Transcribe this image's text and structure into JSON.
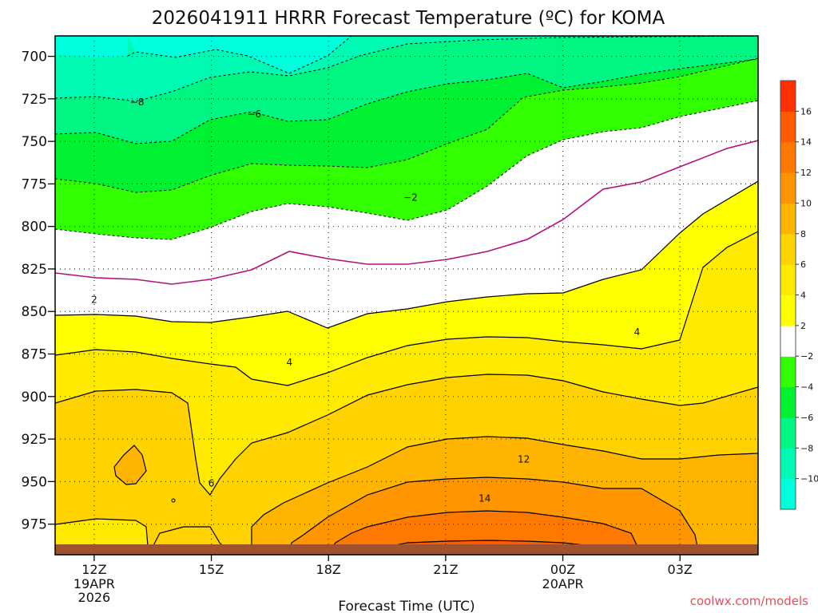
{
  "chart_data": {
    "type": "heatmap",
    "title": "2026041911 HRRR Forecast Temperature (ºC) for KOMA",
    "xlabel": "Forecast Time (UTC)",
    "ylabel": "",
    "x_ticks": [
      {
        "hour": 0,
        "label": "12Z",
        "sub": [
          "19APR",
          "2026"
        ]
      },
      {
        "hour": 3,
        "label": "15Z",
        "sub": []
      },
      {
        "hour": 6,
        "label": "18Z",
        "sub": []
      },
      {
        "hour": 9,
        "label": "21Z",
        "sub": []
      },
      {
        "hour": 12,
        "label": "00Z",
        "sub": [
          "20APR"
        ]
      },
      {
        "hour": 15,
        "label": "03Z",
        "sub": []
      }
    ],
    "xlim": [
      -1,
      17
    ],
    "y_ticks": [
      700,
      725,
      750,
      775,
      800,
      825,
      850,
      875,
      900,
      925,
      950,
      975
    ],
    "ylim": [
      688,
      993
    ],
    "colorbar": {
      "labels": [
        "16",
        "14",
        "12",
        "10",
        "8",
        "6",
        "4",
        "2",
        "−2",
        "−4",
        "−6",
        "−8",
        "−10"
      ],
      "colors": [
        "#00ffdc",
        "#00fab4",
        "#00f582",
        "#00f032",
        "#32ff00",
        "#ffffff",
        "#ffff00",
        "#ffea00",
        "#ffd200",
        "#ffb400",
        "#ff9600",
        "#ff7800",
        "#ff5a00",
        "#ff3000"
      ],
      "bounds": [
        -12,
        -10,
        -8,
        -6,
        -4,
        -2,
        2,
        4,
        6,
        8,
        10,
        12,
        14,
        16,
        18
      ]
    },
    "contour_labels": [
      {
        "text": "−8",
        "hour": 1.1,
        "p": 727
      },
      {
        "text": "−6",
        "hour": 4.1,
        "p": 734
      },
      {
        "text": "−2",
        "hour": 8.1,
        "p": 783
      },
      {
        "text": "2",
        "hour": 0.0,
        "p": 843
      },
      {
        "text": "4",
        "hour": 13.9,
        "p": 862
      },
      {
        "text": "4",
        "hour": 5.0,
        "p": 880
      },
      {
        "text": "6",
        "hour": 3.0,
        "p": 951
      },
      {
        "text": "12",
        "hour": 11.0,
        "p": 937
      },
      {
        "text": "14",
        "hour": 10.0,
        "p": 960
      }
    ]
  },
  "watermark": "coolwx.com/models"
}
